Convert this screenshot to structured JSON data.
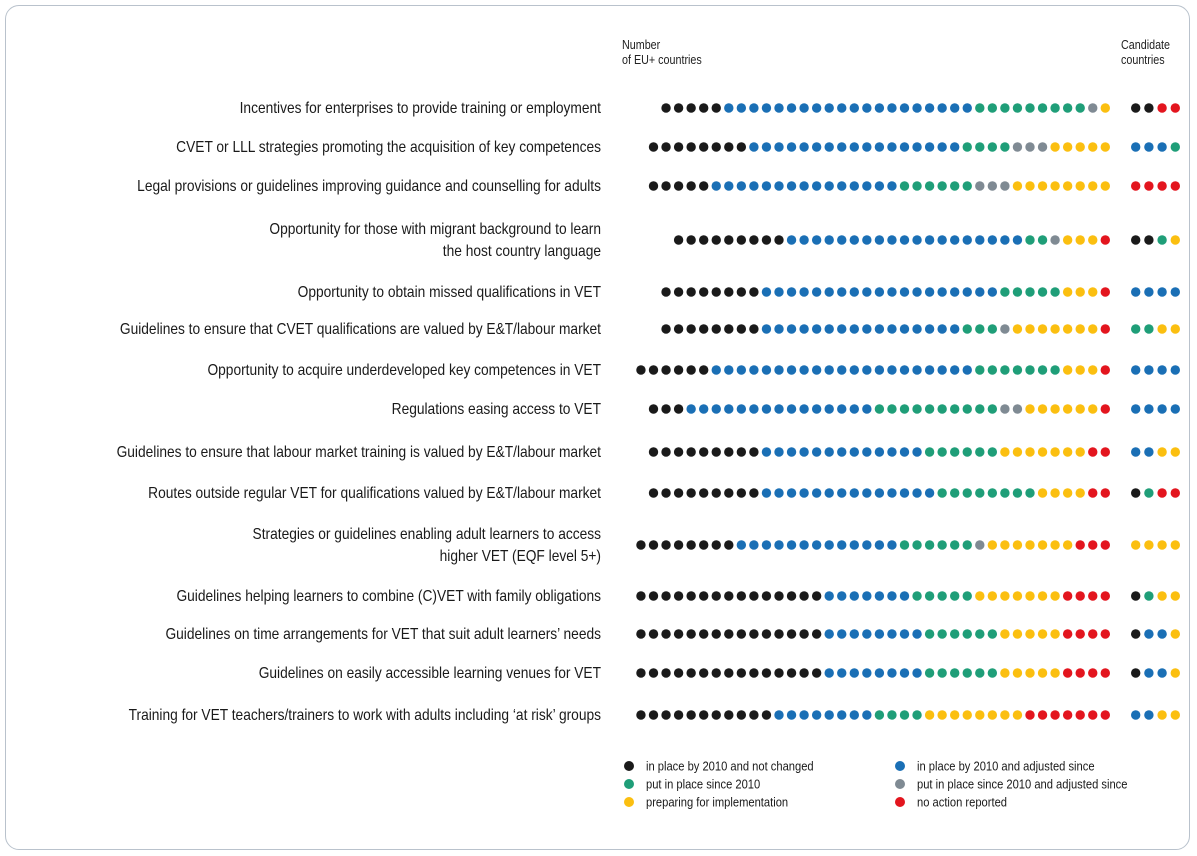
{
  "header": {
    "eu_line1": "Number",
    "eu_line2": "of EU+ countries",
    "cand_line1": "Candidate",
    "cand_line2": "countries"
  },
  "colors": {
    "not_changed": "#1a1a1a",
    "adjusted": "#1a6fb5",
    "since_2010": "#1f9e78",
    "since_adjusted": "#7f8a93",
    "preparing": "#fbbf10",
    "no_action": "#e3151e"
  },
  "chart_data": {
    "type": "dot-matrix",
    "categories_order": [
      "not_changed",
      "adjusted",
      "since_2010",
      "since_adjusted",
      "preparing",
      "no_action"
    ],
    "legend": [
      {
        "key": "not_changed",
        "label": "in place by 2010 and not changed"
      },
      {
        "key": "adjusted",
        "label": "in place by 2010 and adjusted since"
      },
      {
        "key": "since_2010",
        "label": "put in place since 2010"
      },
      {
        "key": "since_adjusted",
        "label": "put in place since 2010 and adjusted since"
      },
      {
        "key": "preparing",
        "label": "preparing for implementation"
      },
      {
        "key": "no_action",
        "label": "no action reported"
      }
    ],
    "rows": [
      {
        "label": [
          "Incentives for enterprises to provide training or employment"
        ],
        "eu": [
          5,
          20,
          9,
          1,
          1,
          0
        ],
        "cand": [
          2,
          0,
          0,
          0,
          0,
          2
        ]
      },
      {
        "label": [
          "CVET or LLL strategies promoting the acquisition of key competences"
        ],
        "eu": [
          8,
          17,
          4,
          3,
          5,
          0
        ],
        "cand": [
          0,
          3,
          1,
          0,
          0,
          0
        ]
      },
      {
        "label": [
          "Legal provisions or guidelines improving guidance and counselling for adults"
        ],
        "eu": [
          5,
          15,
          6,
          3,
          8,
          0
        ],
        "cand": [
          0,
          0,
          0,
          0,
          0,
          4
        ]
      },
      {
        "label": [
          "Opportunity for those with migrant background to learn",
          "the host country language"
        ],
        "eu": [
          9,
          19,
          2,
          1,
          3,
          1
        ],
        "cand": [
          2,
          0,
          1,
          0,
          1,
          0
        ]
      },
      {
        "label": [
          "Opportunity to obtain missed qualifications in VET"
        ],
        "eu": [
          8,
          19,
          5,
          0,
          3,
          1
        ],
        "cand": [
          0,
          4,
          0,
          0,
          0,
          0
        ]
      },
      {
        "label": [
          "Guidelines to ensure that CVET qualifications are valued by E&T/labour market"
        ],
        "eu": [
          8,
          16,
          3,
          1,
          7,
          1
        ],
        "cand": [
          0,
          0,
          2,
          0,
          2,
          0
        ]
      },
      {
        "label": [
          "Opportunity to acquire underdeveloped key competences in VET"
        ],
        "eu": [
          6,
          21,
          7,
          0,
          3,
          1
        ],
        "cand": [
          0,
          4,
          0,
          0,
          0,
          0
        ]
      },
      {
        "label": [
          "Regulations easing access to VET"
        ],
        "eu": [
          3,
          15,
          10,
          2,
          6,
          1
        ],
        "cand": [
          0,
          4,
          0,
          0,
          0,
          0
        ]
      },
      {
        "label": [
          "Guidelines to ensure that labour market training is valued by E&T/labour market"
        ],
        "eu": [
          9,
          13,
          6,
          0,
          7,
          2
        ],
        "cand": [
          0,
          2,
          0,
          0,
          2,
          0
        ]
      },
      {
        "label": [
          "Routes outside regular VET for qualifications valued by E&T/labour market"
        ],
        "eu": [
          9,
          14,
          8,
          0,
          4,
          2
        ],
        "cand": [
          1,
          0,
          1,
          0,
          0,
          2
        ]
      },
      {
        "label": [
          "Strategies or guidelines enabling adult learners to access",
          "higher VET (EQF level 5+)"
        ],
        "eu": [
          8,
          13,
          6,
          1,
          7,
          3
        ],
        "cand": [
          0,
          0,
          0,
          0,
          4,
          0
        ]
      },
      {
        "label": [
          "Guidelines helping learners to combine (C)VET with family obligations"
        ],
        "eu": [
          15,
          7,
          5,
          0,
          7,
          4
        ],
        "cand": [
          1,
          0,
          1,
          0,
          2,
          0
        ]
      },
      {
        "label": [
          "Guidelines on time arrangements for VET that suit adult learners’ needs"
        ],
        "eu": [
          15,
          8,
          6,
          0,
          5,
          4
        ],
        "cand": [
          1,
          2,
          0,
          0,
          1,
          0
        ]
      },
      {
        "label": [
          "Guidelines on easily accessible learning venues for VET"
        ],
        "eu": [
          15,
          8,
          6,
          0,
          5,
          4
        ],
        "cand": [
          1,
          2,
          0,
          0,
          1,
          0
        ]
      },
      {
        "label": [
          "Training for VET teachers/trainers to work with adults including ‘at risk’ groups"
        ],
        "eu": [
          11,
          8,
          4,
          0,
          8,
          7
        ],
        "cand": [
          0,
          2,
          0,
          0,
          2,
          0
        ]
      }
    ]
  }
}
